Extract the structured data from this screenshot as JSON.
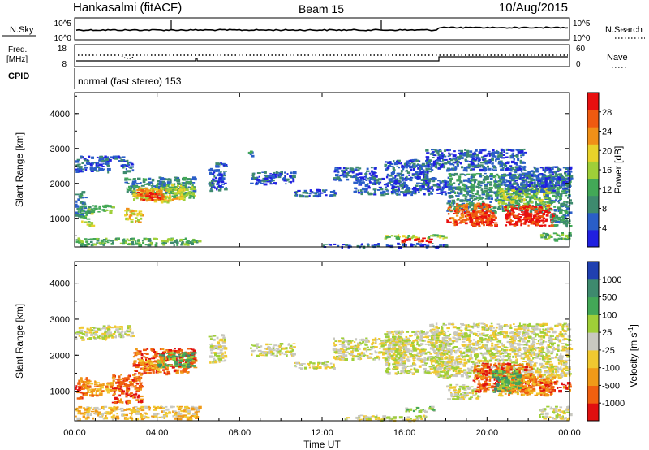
{
  "header": {
    "station": "Hankasalmi (fitACF)",
    "beam": "Beam 15",
    "date": "10/Aug/2015"
  },
  "top_panel": {
    "left_label": "N.Sky",
    "right_label": "N.Search",
    "left_ticks": [
      "10^5",
      "10^0"
    ],
    "right_ticks": [
      "10^5",
      "10^0"
    ]
  },
  "freq_panel": {
    "left_label_line1": "Freq.",
    "left_label_line2": "[MHz]",
    "left_ticks": [
      "18",
      "8"
    ],
    "right_label": "Nave",
    "right_ticks": [
      "60",
      "0"
    ]
  },
  "cpid_panel": {
    "label": "CPID",
    "text": "normal (fast stereo) 153"
  },
  "colors": {
    "power": [
      "#2020e0",
      "#2a5ec8",
      "#3e8a6e",
      "#43a857",
      "#9fcf38",
      "#e8d22a",
      "#f09018",
      "#ef5a10",
      "#e81010"
    ],
    "velocity": [
      "#e01010",
      "#f06010",
      "#f09a18",
      "#f0c830",
      "#c8c8c0",
      "#9fcf38",
      "#43a857",
      "#3e8a6e",
      "#2040b0"
    ]
  },
  "chart_data": [
    {
      "type": "heatmap",
      "panel": "power",
      "xlabel": "",
      "ylabel": "Slant Range [km]",
      "xlim": [
        0,
        24
      ],
      "ylim": [
        180,
        4600
      ],
      "y_ticks": [
        "1000",
        "2000",
        "3000",
        "4000"
      ],
      "colorbar_label": "Power [dB]",
      "colorbar_ticks": [
        "28",
        "24",
        "20",
        "16",
        "12",
        "8",
        "4"
      ],
      "colorbar_range": [
        0,
        32
      ],
      "regions": [
        {
          "x": [
            0.0,
            1.6
          ],
          "y": [
            2350,
            2800
          ],
          "level": 1
        },
        {
          "x": [
            1.3,
            2.4
          ],
          "y": [
            2650,
            2800
          ],
          "level": 1
        },
        {
          "x": [
            2.2,
            2.8
          ],
          "y": [
            2350,
            2700
          ],
          "level": 1
        },
        {
          "x": [
            0.0,
            0.5
          ],
          "y": [
            1000,
            1800
          ],
          "level": 2
        },
        {
          "x": [
            0.3,
            0.8
          ],
          "y": [
            800,
            1300
          ],
          "level": 4
        },
        {
          "x": [
            0.4,
            1.8
          ],
          "y": [
            1200,
            1400
          ],
          "level": 3
        },
        {
          "x": [
            2.4,
            3.2
          ],
          "y": [
            900,
            1300
          ],
          "level": 5
        },
        {
          "x": [
            2.4,
            5.8
          ],
          "y": [
            1700,
            2200
          ],
          "level": 2
        },
        {
          "x": [
            2.8,
            5.4
          ],
          "y": [
            1500,
            1900
          ],
          "level": 5
        },
        {
          "x": [
            3.0,
            4.2
          ],
          "y": [
            1550,
            1850
          ],
          "level": 7
        },
        {
          "x": [
            3.4,
            4.0
          ],
          "y": [
            1600,
            1750
          ],
          "level": 8
        },
        {
          "x": [
            4.4,
            5.8
          ],
          "y": [
            1600,
            2000
          ],
          "level": 4
        },
        {
          "x": [
            0.0,
            6.0
          ],
          "y": [
            250,
            450
          ],
          "level": 3
        },
        {
          "x": [
            6.5,
            7.3
          ],
          "y": [
            1800,
            2600
          ],
          "level": 1
        },
        {
          "x": [
            8.4,
            8.7
          ],
          "y": [
            2800,
            3000
          ],
          "level": 2
        },
        {
          "x": [
            8.5,
            10.6
          ],
          "y": [
            2000,
            2350
          ],
          "level": 1
        },
        {
          "x": [
            10.6,
            12.6
          ],
          "y": [
            1650,
            1850
          ],
          "level": 1
        },
        {
          "x": [
            12.5,
            14.6
          ],
          "y": [
            2100,
            2500
          ],
          "level": 1
        },
        {
          "x": [
            13.5,
            18.0
          ],
          "y": [
            1700,
            2200
          ],
          "level": 1
        },
        {
          "x": [
            15.0,
            17.2
          ],
          "y": [
            2200,
            2700
          ],
          "level": 1
        },
        {
          "x": [
            12.0,
            18.0
          ],
          "y": [
            200,
            300
          ],
          "level": 1
        },
        {
          "x": [
            15.0,
            18.0
          ],
          "y": [
            450,
            550
          ],
          "level": 4
        },
        {
          "x": [
            15.8,
            17.2
          ],
          "y": [
            350,
            450
          ],
          "level": 8
        },
        {
          "x": [
            17.0,
            21.8
          ],
          "y": [
            2400,
            3000
          ],
          "level": 1
        },
        {
          "x": [
            18.0,
            24.0
          ],
          "y": [
            1200,
            2300
          ],
          "level": 2
        },
        {
          "x": [
            18.0,
            20.2
          ],
          "y": [
            850,
            1450
          ],
          "level": 7
        },
        {
          "x": [
            19.0,
            20.4
          ],
          "y": [
            800,
            1200
          ],
          "level": 8
        },
        {
          "x": [
            20.5,
            23.0
          ],
          "y": [
            1300,
            1900
          ],
          "level": 4
        },
        {
          "x": [
            20.8,
            23.2
          ],
          "y": [
            800,
            1400
          ],
          "level": 8
        },
        {
          "x": [
            21.8,
            22.5
          ],
          "y": [
            850,
            1200
          ],
          "level": 8
        },
        {
          "x": [
            23.0,
            24.0
          ],
          "y": [
            800,
            1300
          ],
          "level": 2
        },
        {
          "x": [
            22.5,
            24.0
          ],
          "y": [
            400,
            600
          ],
          "level": 3
        },
        {
          "x": [
            21.0,
            24.0
          ],
          "y": [
            1800,
            2500
          ],
          "level": 1
        }
      ]
    },
    {
      "type": "heatmap",
      "panel": "velocity",
      "xlabel": "Time UT",
      "ylabel": "Slant Range [km]",
      "xlim": [
        0,
        24
      ],
      "ylim": [
        180,
        4600
      ],
      "x_ticks": [
        "00:00",
        "04:00",
        "08:00",
        "12:00",
        "16:00",
        "20:00",
        "00:00"
      ],
      "y_ticks": [
        "1000",
        "2000",
        "3000",
        "4000"
      ],
      "colorbar_label": "Velocity [m s^-1]",
      "colorbar_ticks": [
        "1000",
        "500",
        "100",
        "25",
        "-25",
        "-100",
        "-500",
        "-1000"
      ],
      "regions": [
        {
          "x": [
            0.0,
            1.6
          ],
          "y": [
            2450,
            2800
          ],
          "level": 4
        },
        {
          "x": [
            1.3,
            2.8
          ],
          "y": [
            2500,
            2850
          ],
          "level": 4
        },
        {
          "x": [
            0.0,
            0.6
          ],
          "y": [
            800,
            1400
          ],
          "level": 1
        },
        {
          "x": [
            0.4,
            1.8
          ],
          "y": [
            900,
            1300
          ],
          "level": 2
        },
        {
          "x": [
            1.8,
            3.2
          ],
          "y": [
            700,
            1500
          ],
          "level": 1
        },
        {
          "x": [
            2.8,
            5.8
          ],
          "y": [
            1500,
            2200
          ],
          "level": 1
        },
        {
          "x": [
            3.0,
            4.2
          ],
          "y": [
            1600,
            1900
          ],
          "level": 2
        },
        {
          "x": [
            4.0,
            5.8
          ],
          "y": [
            1700,
            2100
          ],
          "level": 6
        },
        {
          "x": [
            0.0,
            6.0
          ],
          "y": [
            250,
            600
          ],
          "level": 3
        },
        {
          "x": [
            6.5,
            7.3
          ],
          "y": [
            1800,
            2600
          ],
          "level": 4
        },
        {
          "x": [
            8.5,
            10.6
          ],
          "y": [
            2000,
            2350
          ],
          "level": 4
        },
        {
          "x": [
            10.6,
            12.6
          ],
          "y": [
            1650,
            1850
          ],
          "level": 4
        },
        {
          "x": [
            12.5,
            16.0
          ],
          "y": [
            1900,
            2500
          ],
          "level": 4
        },
        {
          "x": [
            15.0,
            18.0
          ],
          "y": [
            1500,
            2700
          ],
          "level": 4
        },
        {
          "x": [
            13.0,
            17.0
          ],
          "y": [
            200,
            350
          ],
          "level": 4
        },
        {
          "x": [
            16.0,
            17.4
          ],
          "y": [
            450,
            600
          ],
          "level": 5
        },
        {
          "x": [
            17.2,
            24.0
          ],
          "y": [
            1400,
            2900
          ],
          "level": 4
        },
        {
          "x": [
            18.0,
            19.6
          ],
          "y": [
            800,
            1200
          ],
          "level": 4
        },
        {
          "x": [
            19.3,
            22.2
          ],
          "y": [
            1000,
            1800
          ],
          "level": 1
        },
        {
          "x": [
            20.5,
            23.2
          ],
          "y": [
            900,
            1500
          ],
          "level": 2
        },
        {
          "x": [
            20.2,
            21.6
          ],
          "y": [
            1000,
            1600
          ],
          "level": 6
        },
        {
          "x": [
            22.5,
            24.0
          ],
          "y": [
            1000,
            1300
          ],
          "level": 1
        },
        {
          "x": [
            22.5,
            24.0
          ],
          "y": [
            250,
            600
          ],
          "level": 4
        }
      ]
    }
  ]
}
